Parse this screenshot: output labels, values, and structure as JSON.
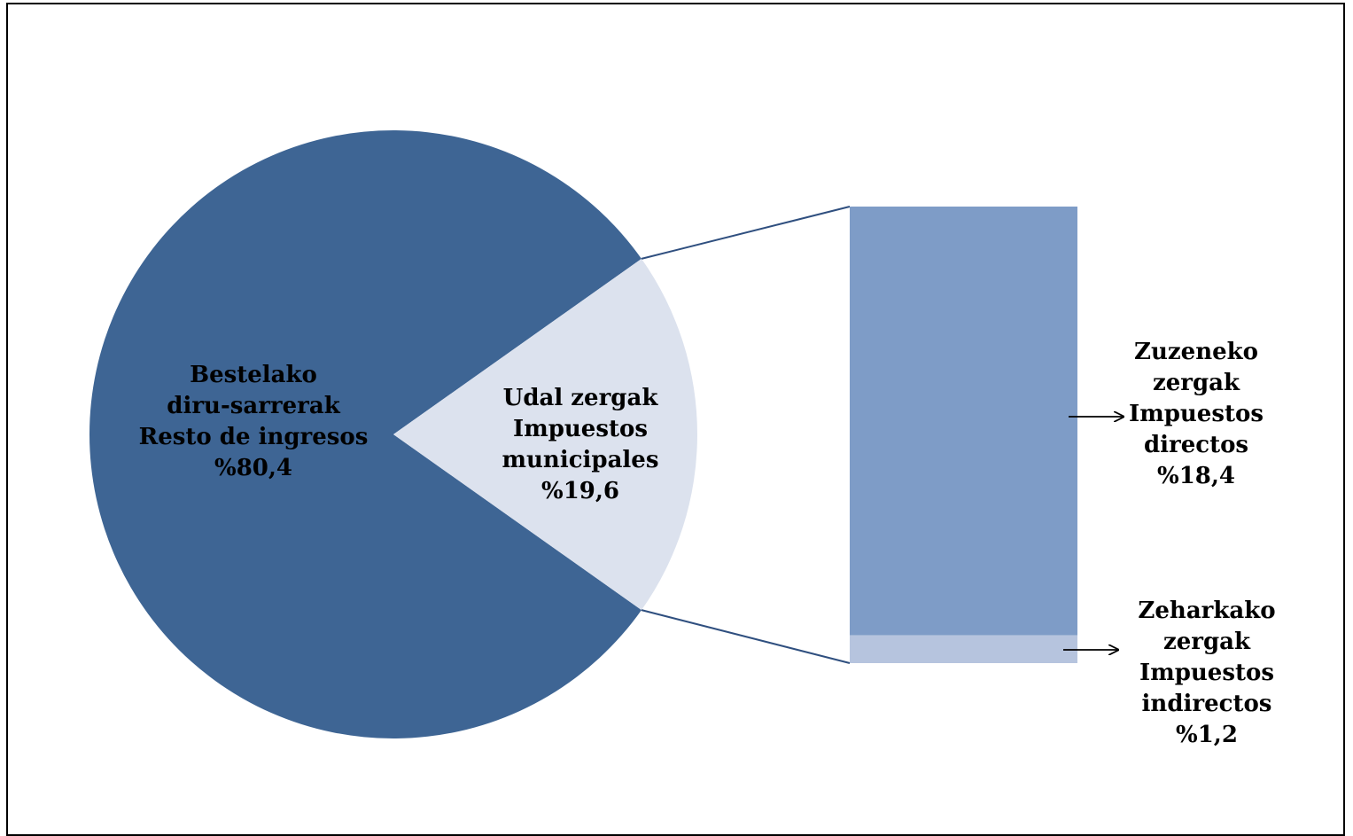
{
  "chart_data": {
    "type": "pie",
    "subtype": "bar-of-pie",
    "title": "",
    "slices": [
      {
        "name_lines": [
          "Bestelako",
          "diru-sarrerak",
          "Resto de ingresos"
        ],
        "value": 80.4,
        "value_label": "%80,4",
        "color": "#3E6594"
      },
      {
        "name_lines": [
          "Udal zergak",
          "Impuestos",
          "municipales"
        ],
        "value": 19.6,
        "value_label": "%19,6",
        "color": "#DCE2EE"
      }
    ],
    "breakdown": [
      {
        "name_lines": [
          "Zuzeneko",
          "zergak",
          "Impuestos",
          "directos"
        ],
        "value": 18.4,
        "value_label": "%18,4",
        "color": "#7E9CC7"
      },
      {
        "name_lines": [
          "Zeharkako",
          "zergak",
          "Impuestos",
          "indirectos"
        ],
        "value": 1.2,
        "value_label": "%1,2",
        "color": "#B6C4DE"
      }
    ],
    "connector_color": "#2F4F7F"
  }
}
